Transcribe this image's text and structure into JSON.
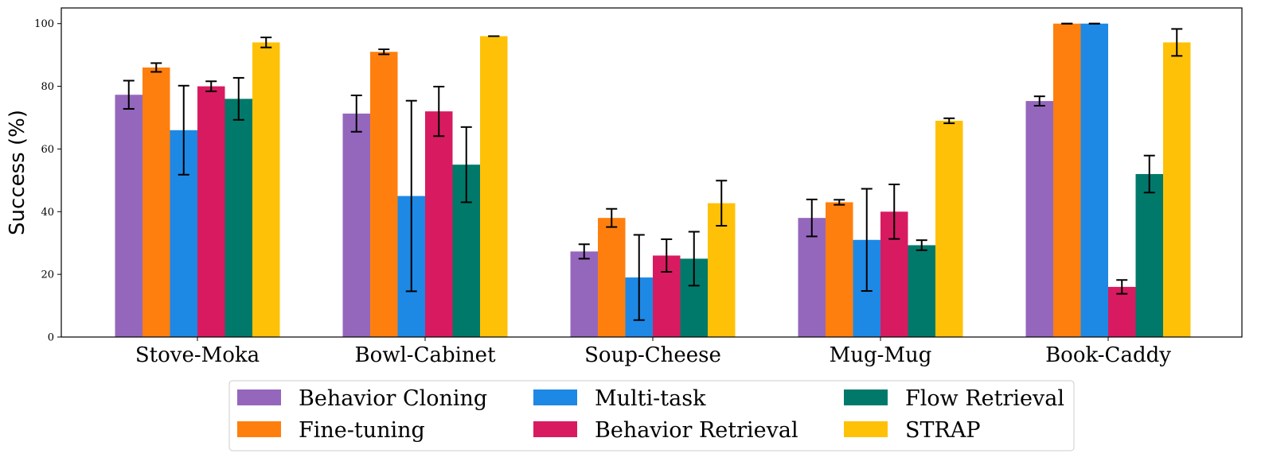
{
  "chart_data": {
    "type": "bar",
    "ylabel": "Success (%)",
    "xlabel": "",
    "ylim": [
      0,
      105
    ],
    "yticks": [
      0,
      20,
      40,
      60,
      80,
      100
    ],
    "grid": false,
    "legend_position": "bottom",
    "categories": [
      "Stove-Moka",
      "Bowl-Cabinet",
      "Soup-Cheese",
      "Mug-Mug",
      "Book-Caddy"
    ],
    "series": [
      {
        "name": "Behavior Cloning",
        "color": "#9467bd",
        "values": [
          77.3,
          71.3,
          27.3,
          38,
          75.3
        ],
        "errors": [
          4.5,
          5.8,
          2.3,
          5.9,
          1.5
        ]
      },
      {
        "name": "Fine-tuning",
        "color": "#ff7f0e",
        "values": [
          86,
          91,
          38,
          43,
          100
        ],
        "errors": [
          1.4,
          0.8,
          2.9,
          0.8,
          0
        ]
      },
      {
        "name": "Multi-task",
        "color": "#1e88e5",
        "values": [
          66,
          45,
          19,
          31,
          100
        ],
        "errors": [
          14.2,
          30.4,
          13.6,
          16.3,
          0
        ]
      },
      {
        "name": "Behavior Retrieval",
        "color": "#d81b60",
        "values": [
          80,
          72,
          26,
          40,
          16
        ],
        "errors": [
          1.6,
          7.9,
          5.2,
          8.7,
          2.2
        ]
      },
      {
        "name": "Flow Retrieval",
        "color": "#00796b",
        "values": [
          76,
          55,
          25,
          29.3,
          52
        ],
        "errors": [
          6.7,
          12,
          8.6,
          1.6,
          5.9
        ]
      },
      {
        "name": "STRAP",
        "color": "#ffc107",
        "values": [
          94,
          96,
          42.7,
          69,
          94
        ],
        "errors": [
          1.6,
          0,
          7.2,
          0.8,
          4.3
        ]
      }
    ]
  }
}
